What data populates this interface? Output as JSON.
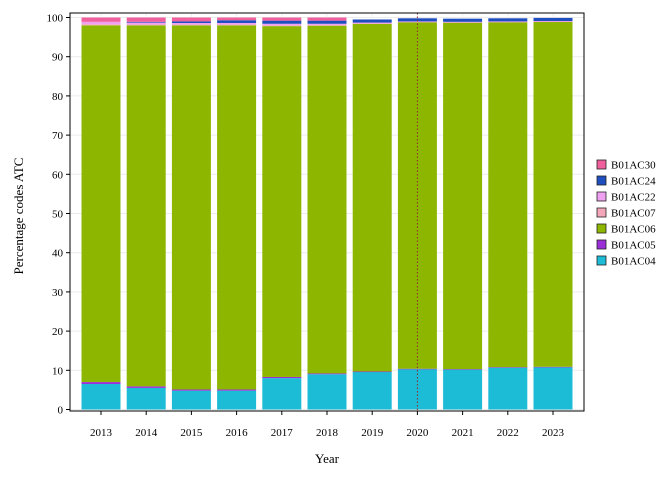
{
  "chart_data": {
    "type": "bar",
    "stacked": true,
    "title": "",
    "xlabel": "Year",
    "ylabel": "Percentage codes ATC",
    "ylim": [
      0,
      100
    ],
    "yticks": [
      0,
      10,
      20,
      30,
      40,
      50,
      60,
      70,
      80,
      90,
      100
    ],
    "grid": true,
    "legend_position": "right",
    "categories": [
      "2013",
      "2014",
      "2015",
      "2016",
      "2017",
      "2018",
      "2019",
      "2020",
      "2021",
      "2022",
      "2023"
    ],
    "reference_line": {
      "x": "2020",
      "color": "#8b2c2c",
      "style": "dotted"
    },
    "series": [
      {
        "name": "B01AC04",
        "color": "#1cbcd6",
        "values": [
          6.5,
          5.5,
          4.8,
          4.8,
          8.0,
          9.0,
          9.6,
          10.3,
          10.2,
          10.7,
          10.8
        ]
      },
      {
        "name": "B01AC05",
        "color": "#9b30d9",
        "values": [
          0.5,
          0.4,
          0.3,
          0.3,
          0.3,
          0.2,
          0.1,
          0.1,
          0.1,
          0.1,
          0.1
        ]
      },
      {
        "name": "B01AC06",
        "color": "#8db600",
        "values": [
          91.0,
          92.1,
          92.9,
          92.9,
          89.5,
          88.7,
          88.7,
          88.4,
          88.4,
          88.0,
          88.0
        ]
      },
      {
        "name": "B01AC07",
        "color": "#f4a7b9",
        "values": [
          0.3,
          0.2,
          0.2,
          0.2,
          0.2,
          0.2,
          0.1,
          0.1,
          0.1,
          0.1,
          0.1
        ]
      },
      {
        "name": "B01AC22",
        "color": "#f0a0f0",
        "values": [
          0.6,
          0.5,
          0.4,
          0.4,
          0.4,
          0.3,
          0.2,
          0.1,
          0.1,
          0.1,
          0.1
        ]
      },
      {
        "name": "B01AC24",
        "color": "#1f4fbf",
        "values": [
          0.0,
          0.2,
          0.4,
          0.7,
          0.8,
          0.8,
          0.8,
          0.8,
          0.8,
          0.8,
          0.8
        ]
      },
      {
        "name": "B01AC30",
        "color": "#f0609e",
        "values": [
          1.1,
          1.1,
          1.0,
          0.7,
          0.8,
          0.8,
          0.0,
          0.0,
          0.0,
          0.0,
          0.0
        ]
      }
    ]
  }
}
